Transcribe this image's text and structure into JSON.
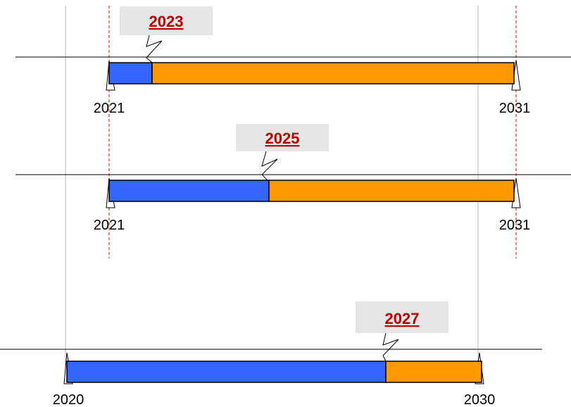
{
  "rows": [
    {
      "start": "2021",
      "end": "2031",
      "marker": "2023"
    },
    {
      "start": "2021",
      "end": "2031",
      "marker": "2025"
    },
    {
      "start": "2020",
      "end": "2030",
      "marker": "2027"
    }
  ]
}
